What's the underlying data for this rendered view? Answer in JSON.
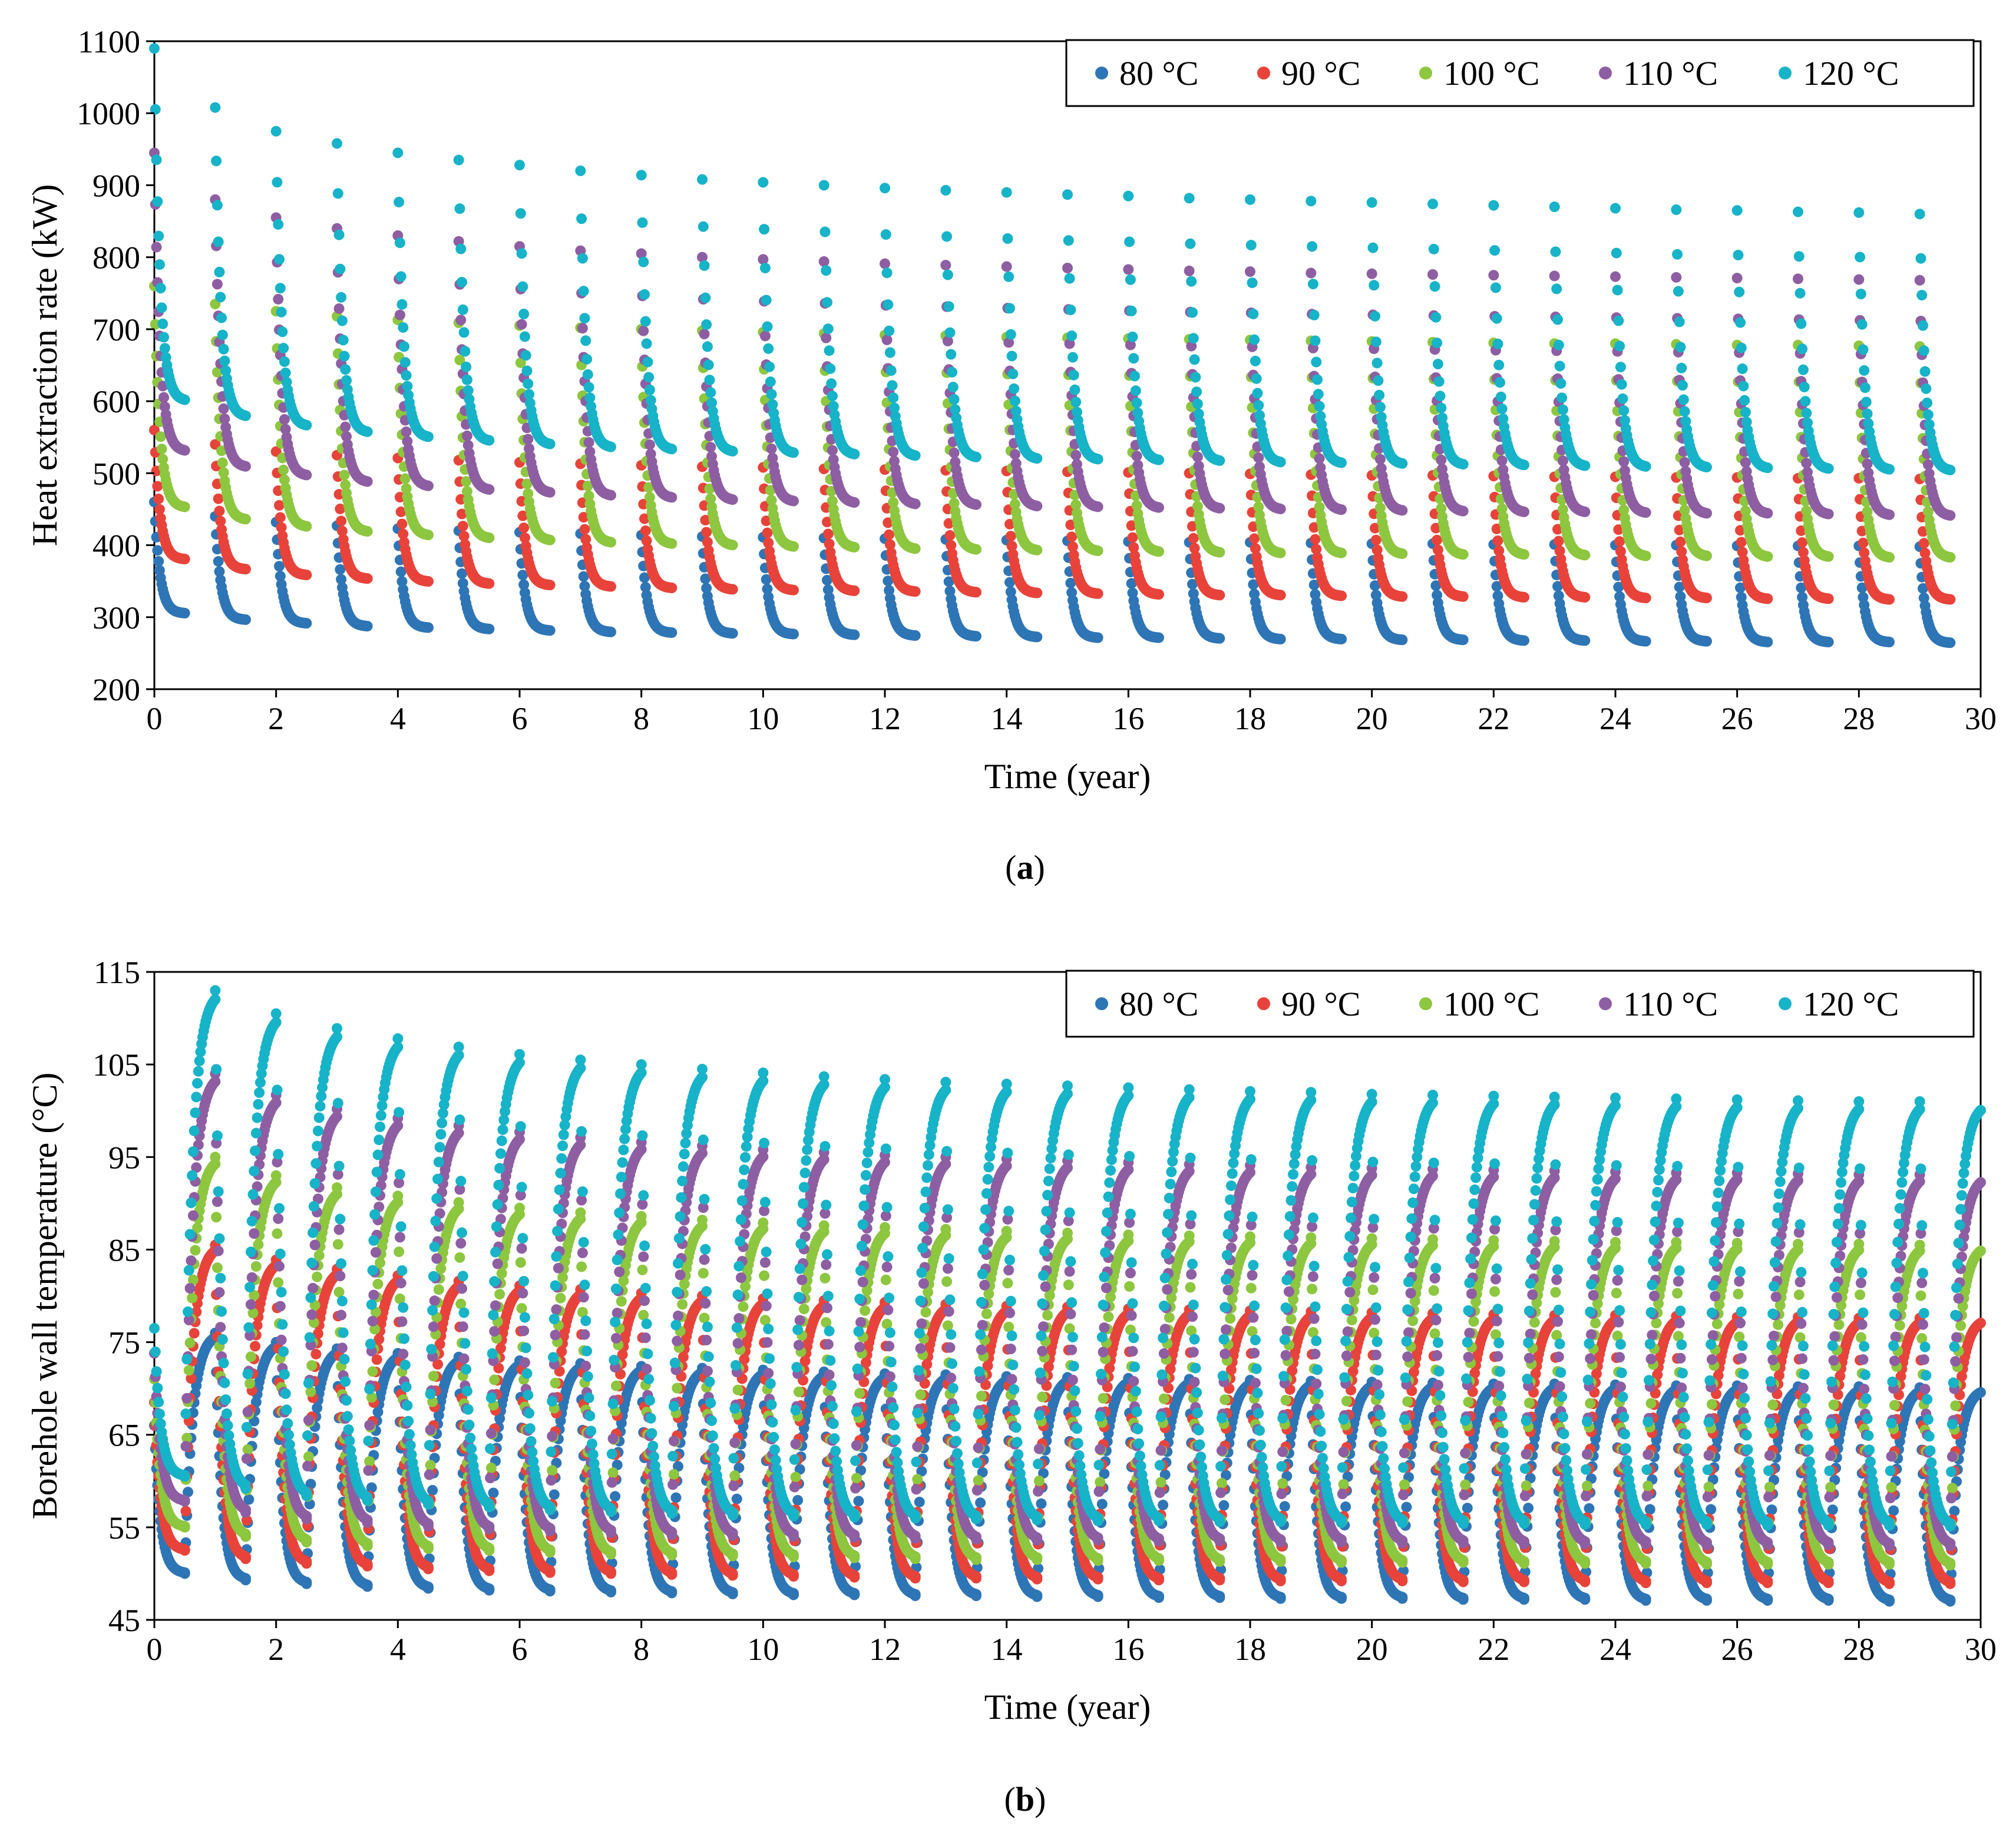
{
  "figure": {
    "captions": [
      "(a)",
      "(b)"
    ],
    "caption_parts": [
      {
        "open": "(",
        "letter": "a",
        "close": ")"
      },
      {
        "open": "(",
        "letter": "b",
        "close": ")"
      }
    ]
  },
  "chart_data": [
    {
      "type": "scatter",
      "panel": "a",
      "title": "",
      "xlabel": "Time (year)",
      "ylabel": "Heat extraction rate (kW)",
      "xlim": [
        0,
        30
      ],
      "ylim": [
        200,
        1100
      ],
      "xticks": [
        0,
        2,
        4,
        6,
        8,
        10,
        12,
        14,
        16,
        18,
        20,
        22,
        24,
        26,
        28,
        30
      ],
      "yticks": [
        200,
        300,
        400,
        500,
        600,
        700,
        800,
        900,
        1000,
        1100
      ],
      "grid": false,
      "legend_position": "top-right",
      "years": 30,
      "season_length_years": 0.5,
      "points_per_season": 30,
      "series": [
        {
          "name": "80 °C",
          "color": "#2E75B6",
          "season_start": [
            460,
            440,
            432,
            427,
            423,
            420,
            418,
            416,
            414,
            412,
            411,
            410,
            409,
            408,
            407,
            406,
            405,
            404,
            404,
            403,
            402,
            402,
            401,
            401,
            400,
            400,
            399,
            399,
            399,
            398
          ],
          "season_end": [
            305,
            296,
            291,
            287,
            285,
            283,
            281,
            279,
            278,
            277,
            276,
            275,
            274,
            273,
            272,
            271,
            271,
            270,
            269,
            269,
            268,
            268,
            267,
            267,
            266,
            266,
            265,
            265,
            265,
            264
          ],
          "initial_peak": 470
        },
        {
          "name": "90 °C",
          "color": "#E8433A",
          "season_start": [
            560,
            540,
            530,
            525,
            521,
            518,
            515,
            513,
            511,
            509,
            508,
            506,
            505,
            504,
            503,
            502,
            501,
            500,
            499,
            498,
            497,
            497,
            496,
            495,
            495,
            494,
            494,
            493,
            493,
            492
          ],
          "season_end": [
            380,
            366,
            358,
            353,
            349,
            346,
            344,
            342,
            340,
            338,
            337,
            336,
            335,
            334,
            333,
            332,
            331,
            330,
            330,
            329,
            328,
            328,
            327,
            327,
            326,
            326,
            325,
            325,
            324,
            324
          ],
          "initial_peak": 580
        },
        {
          "name": "100 °C",
          "color": "#8DC63F",
          "season_start": [
            760,
            735,
            725,
            718,
            713,
            709,
            705,
            702,
            700,
            698,
            696,
            694,
            692,
            691,
            689,
            688,
            687,
            686,
            685,
            684,
            683,
            682,
            681,
            680,
            680,
            679,
            678,
            678,
            677,
            676
          ],
          "season_end": [
            452,
            435,
            425,
            418,
            413,
            409,
            406,
            403,
            401,
            399,
            397,
            396,
            394,
            393,
            392,
            391,
            390,
            389,
            388,
            388,
            387,
            386,
            386,
            385,
            384,
            384,
            383,
            383,
            382,
            382
          ],
          "initial_peak": 720
        },
        {
          "name": "110 °C",
          "color": "#8E5EA2",
          "season_start": [
            945,
            880,
            855,
            840,
            830,
            822,
            815,
            809,
            805,
            800,
            797,
            794,
            791,
            789,
            787,
            785,
            783,
            781,
            780,
            778,
            777,
            776,
            775,
            774,
            773,
            772,
            771,
            770,
            769,
            768
          ],
          "season_end": [
            530,
            508,
            496,
            487,
            481,
            476,
            472,
            468,
            465,
            462,
            460,
            458,
            456,
            455,
            453,
            452,
            451,
            450,
            449,
            448,
            447,
            446,
            445,
            445,
            444,
            443,
            443,
            442,
            441,
            440
          ],
          "initial_peak": 945
        },
        {
          "name": "120 °C",
          "color": "#17B3C8",
          "season_start": [
            1090,
            1008,
            975,
            958,
            945,
            935,
            928,
            920,
            914,
            908,
            904,
            900,
            896,
            893,
            890,
            887,
            885,
            882,
            880,
            878,
            876,
            874,
            872,
            870,
            868,
            866,
            865,
            863,
            862,
            860
          ],
          "season_end": [
            600,
            578,
            565,
            556,
            549,
            544,
            539,
            535,
            532,
            529,
            527,
            525,
            523,
            521,
            519,
            518,
            517,
            516,
            514,
            513,
            512,
            511,
            510,
            509,
            508,
            507,
            506,
            505,
            504,
            503
          ],
          "initial_peak": 1090
        }
      ]
    },
    {
      "type": "scatter",
      "panel": "b",
      "title": "",
      "xlabel": "Time (year)",
      "ylabel": "Borehole wall temperature (°C)",
      "xlim": [
        0,
        30
      ],
      "ylim": [
        45,
        115
      ],
      "xticks": [
        0,
        2,
        4,
        6,
        8,
        10,
        12,
        14,
        16,
        18,
        20,
        22,
        24,
        26,
        28,
        30
      ],
      "yticks": [
        45,
        55,
        65,
        75,
        85,
        95,
        105,
        115
      ],
      "grid": false,
      "legend_position": "top-right",
      "years": 30,
      "season_length_years": 0.5,
      "points_per_season": 30,
      "series": [
        {
          "name": "80 °C",
          "color": "#2E75B6",
          "heating_end": [
            50.0,
            49.3,
            48.9,
            48.6,
            48.4,
            48.2,
            48.1,
            48.0,
            47.9,
            47.8,
            47.7,
            47.7,
            47.6,
            47.6,
            47.5,
            47.5,
            47.4,
            47.4,
            47.3,
            47.3,
            47.3,
            47.2,
            47.2,
            47.2,
            47.1,
            47.1,
            47.1,
            47.1,
            47.0,
            47.0
          ],
          "recovery_peak": [
            76.0,
            75.0,
            74.3,
            73.8,
            73.4,
            73.0,
            72.7,
            72.4,
            72.2,
            72.0,
            71.8,
            71.6,
            71.5,
            71.3,
            71.2,
            71.1,
            71.0,
            70.9,
            70.8,
            70.7,
            70.6,
            70.5,
            70.5,
            70.4,
            70.3,
            70.3,
            70.2,
            70.2,
            70.1,
            70.0
          ]
        },
        {
          "name": "90 °C",
          "color": "#E8433A",
          "heating_end": [
            52.5,
            51.6,
            51.1,
            50.8,
            50.5,
            50.3,
            50.1,
            50.0,
            49.9,
            49.8,
            49.7,
            49.6,
            49.5,
            49.5,
            49.4,
            49.4,
            49.3,
            49.3,
            49.2,
            49.2,
            49.2,
            49.1,
            49.1,
            49.1,
            49.0,
            49.0,
            49.0,
            49.0,
            48.9,
            48.9
          ],
          "recovery_peak": [
            85.5,
            83.9,
            82.9,
            82.2,
            81.6,
            81.1,
            80.7,
            80.3,
            80.0,
            79.7,
            79.5,
            79.3,
            79.1,
            78.9,
            78.8,
            78.6,
            78.5,
            78.4,
            78.3,
            78.2,
            78.1,
            78.0,
            77.9,
            77.9,
            77.8,
            77.7,
            77.7,
            77.6,
            77.6,
            77.6
          ]
        },
        {
          "name": "100 °C",
          "color": "#8DC63F",
          "heating_end": [
            55.0,
            54.0,
            53.4,
            53.0,
            52.7,
            52.5,
            52.3,
            52.1,
            52.0,
            51.9,
            51.8,
            51.7,
            51.6,
            51.5,
            51.5,
            51.4,
            51.4,
            51.3,
            51.3,
            51.2,
            51.2,
            51.2,
            51.1,
            51.1,
            51.1,
            51.0,
            51.0,
            51.0,
            51.0,
            50.9
          ],
          "recovery_peak": [
            95.0,
            93.0,
            91.7,
            90.8,
            90.1,
            89.5,
            89.0,
            88.6,
            88.2,
            87.9,
            87.6,
            87.4,
            87.2,
            87.0,
            86.8,
            86.6,
            86.5,
            86.4,
            86.3,
            86.2,
            86.1,
            86.0,
            85.9,
            85.8,
            85.8,
            85.7,
            85.6,
            85.6,
            85.5,
            85.5
          ]
        },
        {
          "name": "110 °C",
          "color": "#8E5EA2",
          "heating_end": [
            57.8,
            56.6,
            55.9,
            55.5,
            55.1,
            54.8,
            54.6,
            54.4,
            54.2,
            54.1,
            54.0,
            53.9,
            53.8,
            53.7,
            53.6,
            53.6,
            53.5,
            53.5,
            53.4,
            53.4,
            53.3,
            53.3,
            53.2,
            53.2,
            53.2,
            53.1,
            53.1,
            53.1,
            53.0,
            53.0
          ],
          "recovery_peak": [
            104.0,
            101.7,
            100.2,
            99.2,
            98.4,
            97.7,
            97.1,
            96.6,
            96.2,
            95.8,
            95.5,
            95.2,
            95.0,
            94.8,
            94.6,
            94.4,
            94.2,
            94.1,
            93.9,
            93.8,
            93.7,
            93.6,
            93.5,
            93.4,
            93.3,
            93.3,
            93.2,
            93.1,
            93.1,
            93.0
          ]
        },
        {
          "name": "120 °C",
          "color": "#17B3C8",
          "heating_end": [
            60.5,
            59.2,
            58.4,
            57.9,
            57.5,
            57.2,
            56.9,
            56.7,
            56.5,
            56.3,
            56.2,
            56.1,
            56.0,
            55.9,
            55.8,
            55.7,
            55.7,
            55.6,
            55.6,
            55.5,
            55.5,
            55.4,
            55.4,
            55.3,
            55.3,
            55.3,
            55.2,
            55.2,
            55.2,
            55.1
          ],
          "recovery_peak": [
            113.0,
            110.5,
            108.9,
            107.8,
            106.9,
            106.1,
            105.5,
            105.0,
            104.5,
            104.1,
            103.7,
            103.4,
            103.1,
            102.9,
            102.7,
            102.5,
            102.3,
            102.1,
            102.0,
            101.8,
            101.7,
            101.6,
            101.5,
            101.4,
            101.3,
            101.2,
            101.1,
            101.0,
            101.0,
            100.9
          ]
        }
      ]
    }
  ]
}
